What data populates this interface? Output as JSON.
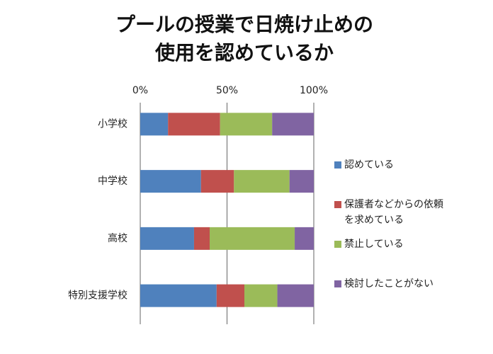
{
  "chart_data": {
    "type": "stacked-bar-horizontal",
    "title": [
      "プールの授業で日焼け止めの",
      "使用を認めているか"
    ],
    "categories": [
      "小学校",
      "中学校",
      "高校",
      "特別支援学校"
    ],
    "series": [
      {
        "name": "認めている",
        "color": "#4f81bd",
        "values": [
          16,
          35,
          31,
          44
        ]
      },
      {
        "name": "保護者などからの依頼を求めている",
        "color": "#c0504d",
        "values": [
          30,
          19,
          9,
          16
        ]
      },
      {
        "name": "禁止している",
        "color": "#9bbb59",
        "values": [
          30,
          32,
          49,
          19
        ]
      },
      {
        "name": "検討したことがない",
        "color": "#8064a2",
        "values": [
          24,
          14,
          11,
          21
        ]
      }
    ],
    "xlim": [
      0,
      100
    ],
    "xticks": [
      {
        "value": 0,
        "label": "0%"
      },
      {
        "value": 50,
        "label": "50%"
      },
      {
        "value": 100,
        "label": "100%"
      }
    ],
    "grid": true,
    "legend": "right"
  }
}
